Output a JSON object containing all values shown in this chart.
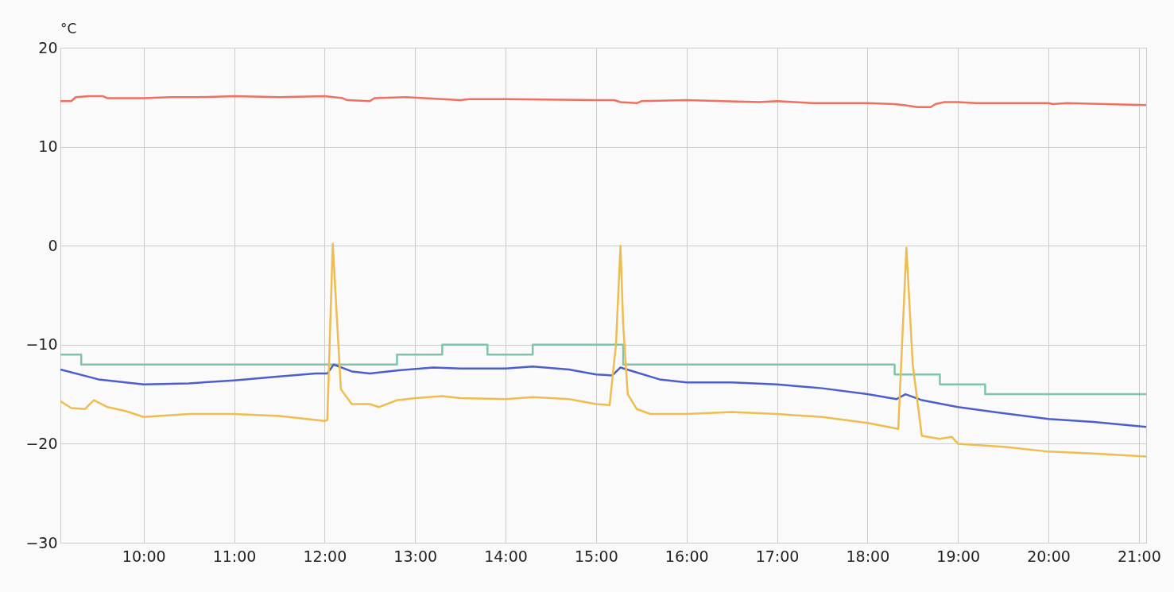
{
  "chart_data": {
    "type": "line",
    "ylabel": "°C",
    "xlim": [
      9.08,
      21.08
    ],
    "ylim": [
      -30,
      20
    ],
    "yticks": [
      -30,
      -20,
      -10,
      0,
      10,
      20
    ],
    "xticks": [
      {
        "value": 10,
        "label": "10:00"
      },
      {
        "value": 11,
        "label": "11:00"
      },
      {
        "value": 12,
        "label": "12:00"
      },
      {
        "value": 13,
        "label": "13:00"
      },
      {
        "value": 14,
        "label": "14:00"
      },
      {
        "value": 15,
        "label": "15:00"
      },
      {
        "value": 16,
        "label": "16:00"
      },
      {
        "value": 17,
        "label": "17:00"
      },
      {
        "value": 18,
        "label": "18:00"
      },
      {
        "value": 19,
        "label": "19:00"
      },
      {
        "value": 20,
        "label": "20:00"
      },
      {
        "value": 21,
        "label": "21:00"
      }
    ],
    "grid": true,
    "line_style": "solid",
    "series": [
      {
        "color": "#ee7060",
        "x": [
          9.08,
          9.2,
          9.25,
          9.4,
          9.55,
          9.6,
          10,
          10.3,
          10.6,
          11,
          11.5,
          12,
          12.2,
          12.25,
          12.5,
          12.55,
          12.9,
          13.3,
          13.5,
          13.6,
          14,
          15,
          15.2,
          15.27,
          15.45,
          15.5,
          16,
          16.8,
          17,
          17.4,
          18,
          18.3,
          18.4,
          18.55,
          18.7,
          18.75,
          18.85,
          19,
          19.2,
          20,
          20.05,
          20.2,
          21.08
        ],
        "values": [
          14.6,
          14.6,
          15.0,
          15.1,
          15.1,
          14.9,
          14.9,
          15.0,
          15.0,
          15.1,
          15.0,
          15.1,
          14.9,
          14.7,
          14.6,
          14.9,
          15.0,
          14.8,
          14.7,
          14.8,
          14.8,
          14.7,
          14.7,
          14.5,
          14.4,
          14.6,
          14.7,
          14.5,
          14.6,
          14.4,
          14.4,
          14.3,
          14.2,
          14.0,
          14.0,
          14.3,
          14.5,
          14.5,
          14.4,
          14.4,
          14.3,
          14.4,
          14.2
        ]
      },
      {
        "type": "step",
        "color": "#7ec4a8",
        "x": [
          9.08,
          9.31,
          12.8,
          13.3,
          13.8,
          14.3,
          15.3,
          18.3,
          18.8,
          19.3,
          21.08
        ],
        "values": [
          -11,
          -12,
          -11,
          -10,
          -11,
          -10,
          -12,
          -13,
          -14,
          -15,
          -15
        ]
      },
      {
        "color": "#4a5fcc",
        "x": [
          9.08,
          9.5,
          10,
          10.5,
          11,
          11.5,
          11.9,
          12.03,
          12.1,
          12.3,
          12.5,
          12.8,
          13.2,
          13.5,
          14,
          14.3,
          14.7,
          15,
          15.18,
          15.27,
          15.45,
          15.7,
          16,
          16.5,
          17,
          17.5,
          18,
          18.32,
          18.42,
          18.6,
          19,
          19.4,
          20,
          20.5,
          21.08
        ],
        "values": [
          -12.5,
          -13.5,
          -14.0,
          -13.9,
          -13.6,
          -13.2,
          -12.9,
          -12.9,
          -12.0,
          -12.7,
          -12.9,
          -12.6,
          -12.3,
          -12.4,
          -12.4,
          -12.2,
          -12.5,
          -13.0,
          -13.1,
          -12.3,
          -12.8,
          -13.5,
          -13.8,
          -13.8,
          -14.0,
          -14.4,
          -15.0,
          -15.5,
          -15.0,
          -15.6,
          -16.3,
          -16.8,
          -17.5,
          -17.8,
          -18.3
        ]
      },
      {
        "color": "#efbd4f",
        "x": [
          9.08,
          9.2,
          9.35,
          9.45,
          9.6,
          9.8,
          10,
          10.5,
          11,
          11.5,
          11.9,
          12.0,
          12.03,
          12.09,
          12.18,
          12.3,
          12.5,
          12.6,
          12.8,
          13,
          13.3,
          13.5,
          14,
          14.3,
          14.7,
          15,
          15.15,
          15.22,
          15.27,
          15.3,
          15.35,
          15.45,
          15.6,
          16,
          16.5,
          17,
          17.5,
          18,
          18.34,
          18.43,
          18.5,
          18.6,
          18.8,
          18.93,
          19,
          19.5,
          20,
          20.5,
          21.08
        ],
        "values": [
          -15.7,
          -16.4,
          -16.5,
          -15.6,
          -16.3,
          -16.7,
          -17.3,
          -17.0,
          -17.0,
          -17.2,
          -17.6,
          -17.7,
          -17.6,
          0.2,
          -14.5,
          -16.0,
          -16.0,
          -16.3,
          -15.6,
          -15.4,
          -15.2,
          -15.4,
          -15.5,
          -15.3,
          -15.5,
          -16.0,
          -16.1,
          -10,
          0.0,
          -8,
          -15,
          -16.5,
          -17.0,
          -17.0,
          -16.8,
          -17.0,
          -17.3,
          -17.9,
          -18.5,
          -0.2,
          -12,
          -19.2,
          -19.5,
          -19.3,
          -20.0,
          -20.3,
          -20.8,
          -21.0,
          -21.3
        ]
      }
    ]
  }
}
